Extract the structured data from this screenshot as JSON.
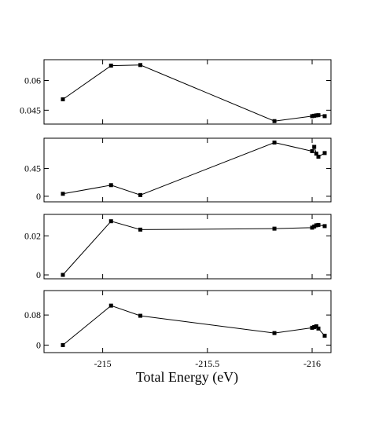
{
  "chart_data": [
    {
      "type": "line",
      "x": [
        -214.81,
        -215.04,
        -215.18,
        -215.82,
        -216.0,
        -216.01,
        -216.02,
        -216.03,
        -216.06
      ],
      "y": [
        0.0505,
        0.0675,
        0.0678,
        0.0395,
        0.042,
        0.0422,
        0.0424,
        0.0425,
        0.042
      ],
      "yticks": [
        {
          "value": 0.06,
          "label": "0.06"
        },
        {
          "value": 0.045,
          "label": "0.045"
        }
      ],
      "xlim": [
        -214.72,
        -216.09
      ],
      "ylim": [
        0.038,
        0.0705
      ]
    },
    {
      "type": "line",
      "x": [
        -214.81,
        -215.04,
        -215.18,
        -215.82,
        -216.0,
        -216.01,
        -216.02,
        -216.03,
        -216.06
      ],
      "y": [
        0.04,
        0.18,
        0.02,
        0.87,
        0.73,
        0.8,
        0.69,
        0.64,
        0.7
      ],
      "yticks": [
        {
          "value": 0.45,
          "label": "0.45"
        },
        {
          "value": 0,
          "label": "0"
        }
      ],
      "xlim": [
        -214.72,
        -216.09
      ],
      "ylim": [
        -0.09,
        0.94
      ]
    },
    {
      "type": "line",
      "x": [
        -214.81,
        -215.04,
        -215.18,
        -215.82,
        -216.0,
        -216.01,
        -216.02,
        -216.03,
        -216.06
      ],
      "y": [
        0.0,
        0.0275,
        0.0232,
        0.0237,
        0.0242,
        0.0248,
        0.0254,
        0.0256,
        0.025
      ],
      "yticks": [
        {
          "value": 0.02,
          "label": "0.02"
        },
        {
          "value": 0,
          "label": "0"
        }
      ],
      "xlim": [
        -214.72,
        -216.09
      ],
      "ylim": [
        -0.002,
        0.031
      ]
    },
    {
      "type": "line",
      "x": [
        -214.81,
        -215.04,
        -215.18,
        -215.82,
        -216.0,
        -216.01,
        -216.02,
        -216.03,
        -216.06
      ],
      "y": [
        0.0,
        0.105,
        0.078,
        0.032,
        0.046,
        0.048,
        0.05,
        0.044,
        0.025
      ],
      "yticks": [
        {
          "value": 0.08,
          "label": "0.08"
        },
        {
          "value": 0,
          "label": "0"
        }
      ],
      "xlim": [
        -214.72,
        -216.09
      ],
      "ylim": [
        -0.02,
        0.145
      ],
      "xticks": [
        {
          "value": -215,
          "label": "-215"
        },
        {
          "value": -215.5,
          "label": "-215.5"
        },
        {
          "value": -216,
          "label": "-216"
        }
      ],
      "xlabel": "Total Energy (eV)"
    }
  ],
  "colors": {
    "line": "#000000",
    "marker": "#000000",
    "frame": "#000000",
    "background": "#ffffff"
  }
}
